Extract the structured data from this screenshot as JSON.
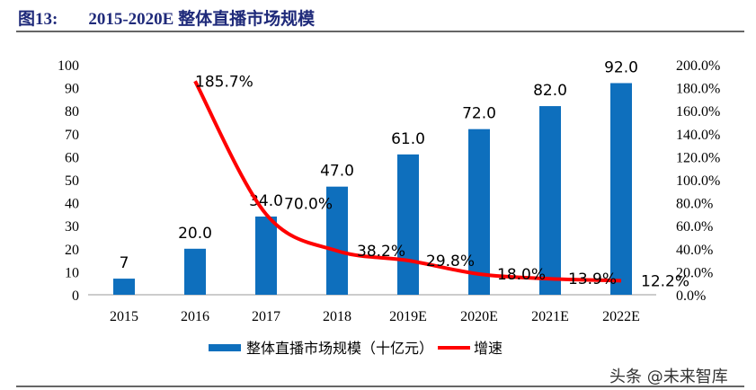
{
  "title_prefix": "图13:",
  "title": "2015-2020E 整体直播市场规模",
  "watermark": "头条 @未来智库",
  "chart_data": {
    "type": "bar+line",
    "categories": [
      "2015",
      "2016",
      "2017",
      "2018",
      "2019E",
      "2020E",
      "2021E",
      "2022E"
    ],
    "series": [
      {
        "name": "整体直播市场规模（十亿元）",
        "type": "bar",
        "axis": "left",
        "color": "#0e6fbd",
        "values": [
          7,
          20,
          34,
          47,
          61,
          72,
          82,
          92
        ],
        "labels": [
          "7",
          "20.0",
          "34.0",
          "47.0",
          "61.0",
          "72.0",
          "82.0",
          "92.0"
        ]
      },
      {
        "name": "增速",
        "type": "line",
        "axis": "right",
        "color": "#ff0000",
        "values": [
          null,
          185.7,
          70.0,
          38.2,
          29.8,
          18.0,
          13.9,
          12.2
        ],
        "labels": [
          "",
          "185.7%",
          "70.0%",
          "38.2%",
          "29.8%",
          "18.0%",
          "13.9%",
          "12.2%"
        ]
      }
    ],
    "ylim_left": [
      0,
      100
    ],
    "yticks_left": [
      "0",
      "10",
      "20",
      "30",
      "40",
      "50",
      "60",
      "70",
      "80",
      "90",
      "100"
    ],
    "ylim_right": [
      0,
      200
    ],
    "yticks_right": [
      "0.0%",
      "20.0%",
      "40.0%",
      "60.0%",
      "80.0%",
      "100.0%",
      "120.0%",
      "140.0%",
      "160.0%",
      "180.0%",
      "200.0%"
    ],
    "grid": false,
    "legend": "bottom"
  }
}
